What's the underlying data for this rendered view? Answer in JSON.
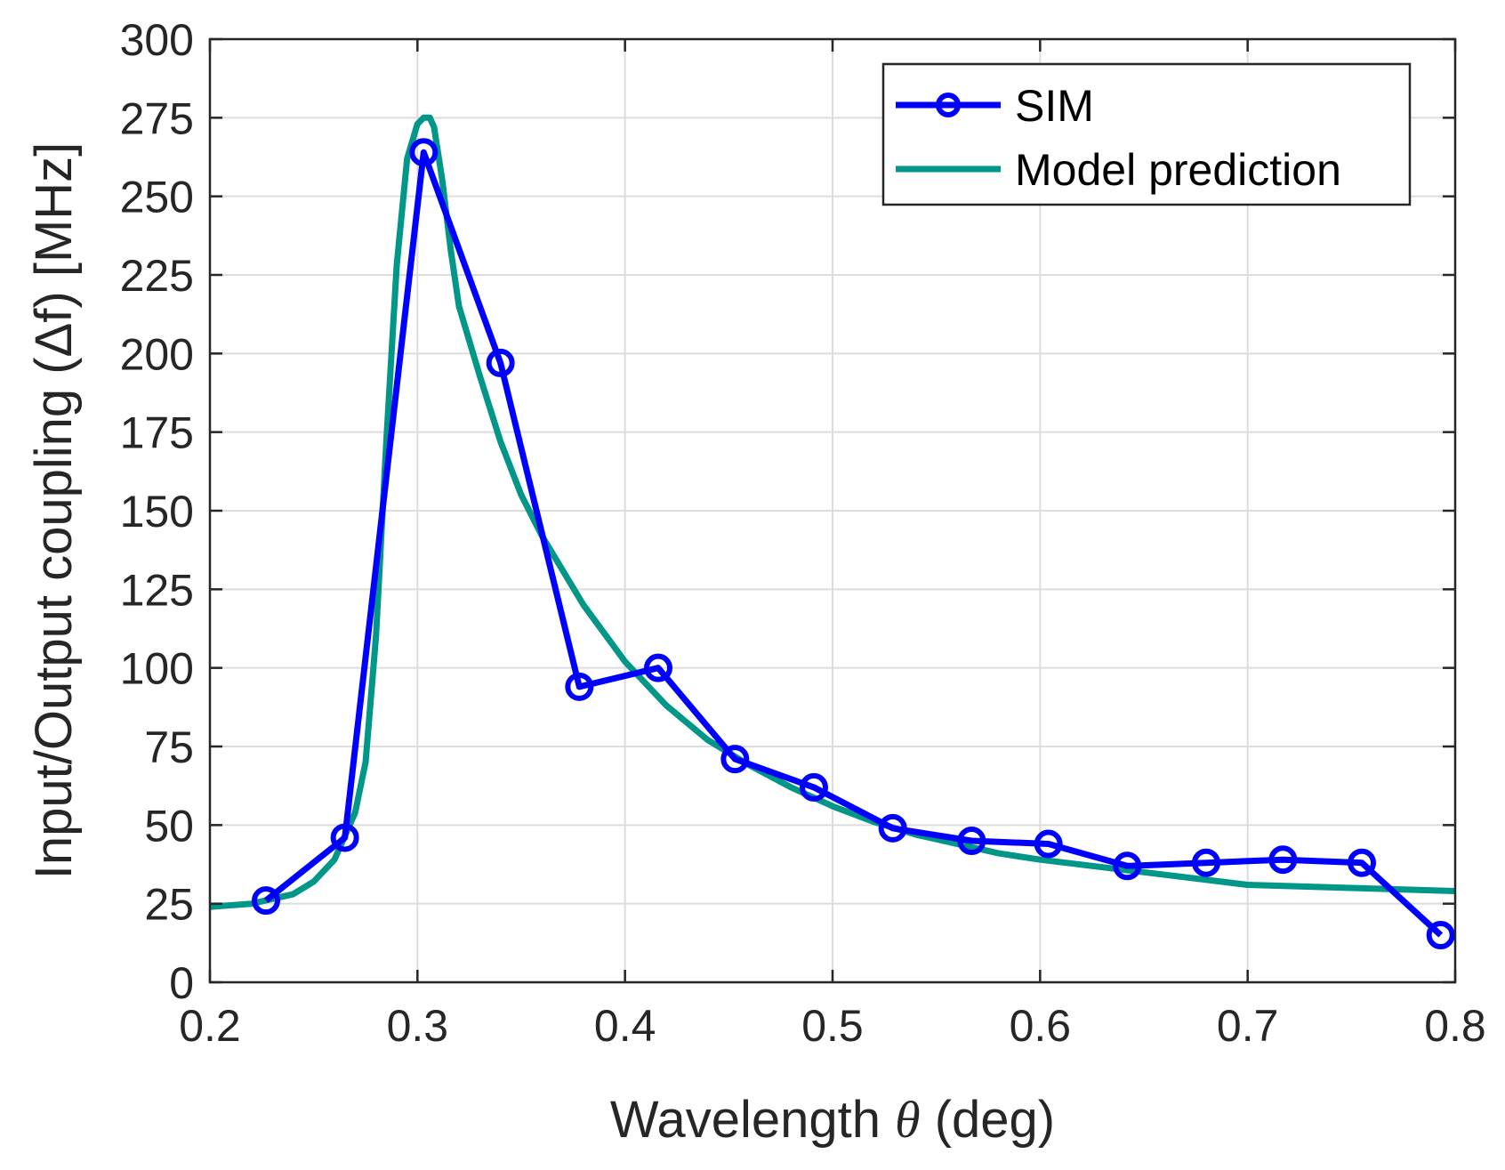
{
  "chart_data": {
    "type": "line",
    "xlabel_prefix": "Wavelength ",
    "xlabel_symbol": "θ",
    "xlabel_suffix": " (deg)",
    "ylabel": "Input/Output coupling (Δf) [MHz]",
    "xlim": [
      0.2,
      0.8
    ],
    "ylim": [
      0,
      300
    ],
    "xticks": [
      0.2,
      0.3,
      0.4,
      0.5,
      0.6,
      0.7,
      0.8
    ],
    "xtick_labels": [
      "0.2",
      "0.3",
      "0.4",
      "0.5",
      "0.6",
      "0.7",
      "0.8"
    ],
    "yticks": [
      0,
      25,
      50,
      75,
      100,
      125,
      150,
      175,
      200,
      225,
      250,
      275,
      300
    ],
    "ytick_labels": [
      "0",
      "25",
      "50",
      "75",
      "100",
      "125",
      "150",
      "175",
      "200",
      "225",
      "250",
      "275",
      "300"
    ],
    "grid": true,
    "legend_position": "top-right",
    "series": [
      {
        "name": "SIM",
        "color": "#0000ff",
        "marker": "circle",
        "x": [
          0.227,
          0.265,
          0.303,
          0.34,
          0.378,
          0.416,
          0.453,
          0.491,
          0.529,
          0.567,
          0.604,
          0.642,
          0.68,
          0.717,
          0.755,
          0.793
        ],
        "y": [
          26,
          46,
          264,
          197,
          94,
          100,
          71,
          62,
          49,
          45,
          44,
          37,
          38,
          39,
          38,
          15
        ]
      },
      {
        "name": "Model prediction",
        "color": "#009688",
        "marker": "none",
        "x": [
          0.2,
          0.22,
          0.24,
          0.25,
          0.26,
          0.27,
          0.275,
          0.28,
          0.285,
          0.29,
          0.295,
          0.3,
          0.303,
          0.306,
          0.308,
          0.312,
          0.316,
          0.32,
          0.33,
          0.34,
          0.35,
          0.36,
          0.38,
          0.4,
          0.42,
          0.44,
          0.46,
          0.48,
          0.5,
          0.52,
          0.54,
          0.56,
          0.58,
          0.6,
          0.65,
          0.7,
          0.75,
          0.8
        ],
        "y": [
          24,
          25,
          28,
          32,
          39,
          54,
          70,
          110,
          172,
          228,
          262,
          273,
          275,
          275,
          272,
          255,
          233,
          215,
          193,
          172,
          155,
          142,
          120,
          102,
          88,
          77,
          69,
          62,
          56,
          51,
          47,
          44,
          41,
          39,
          35,
          31,
          30,
          29
        ]
      }
    ]
  }
}
